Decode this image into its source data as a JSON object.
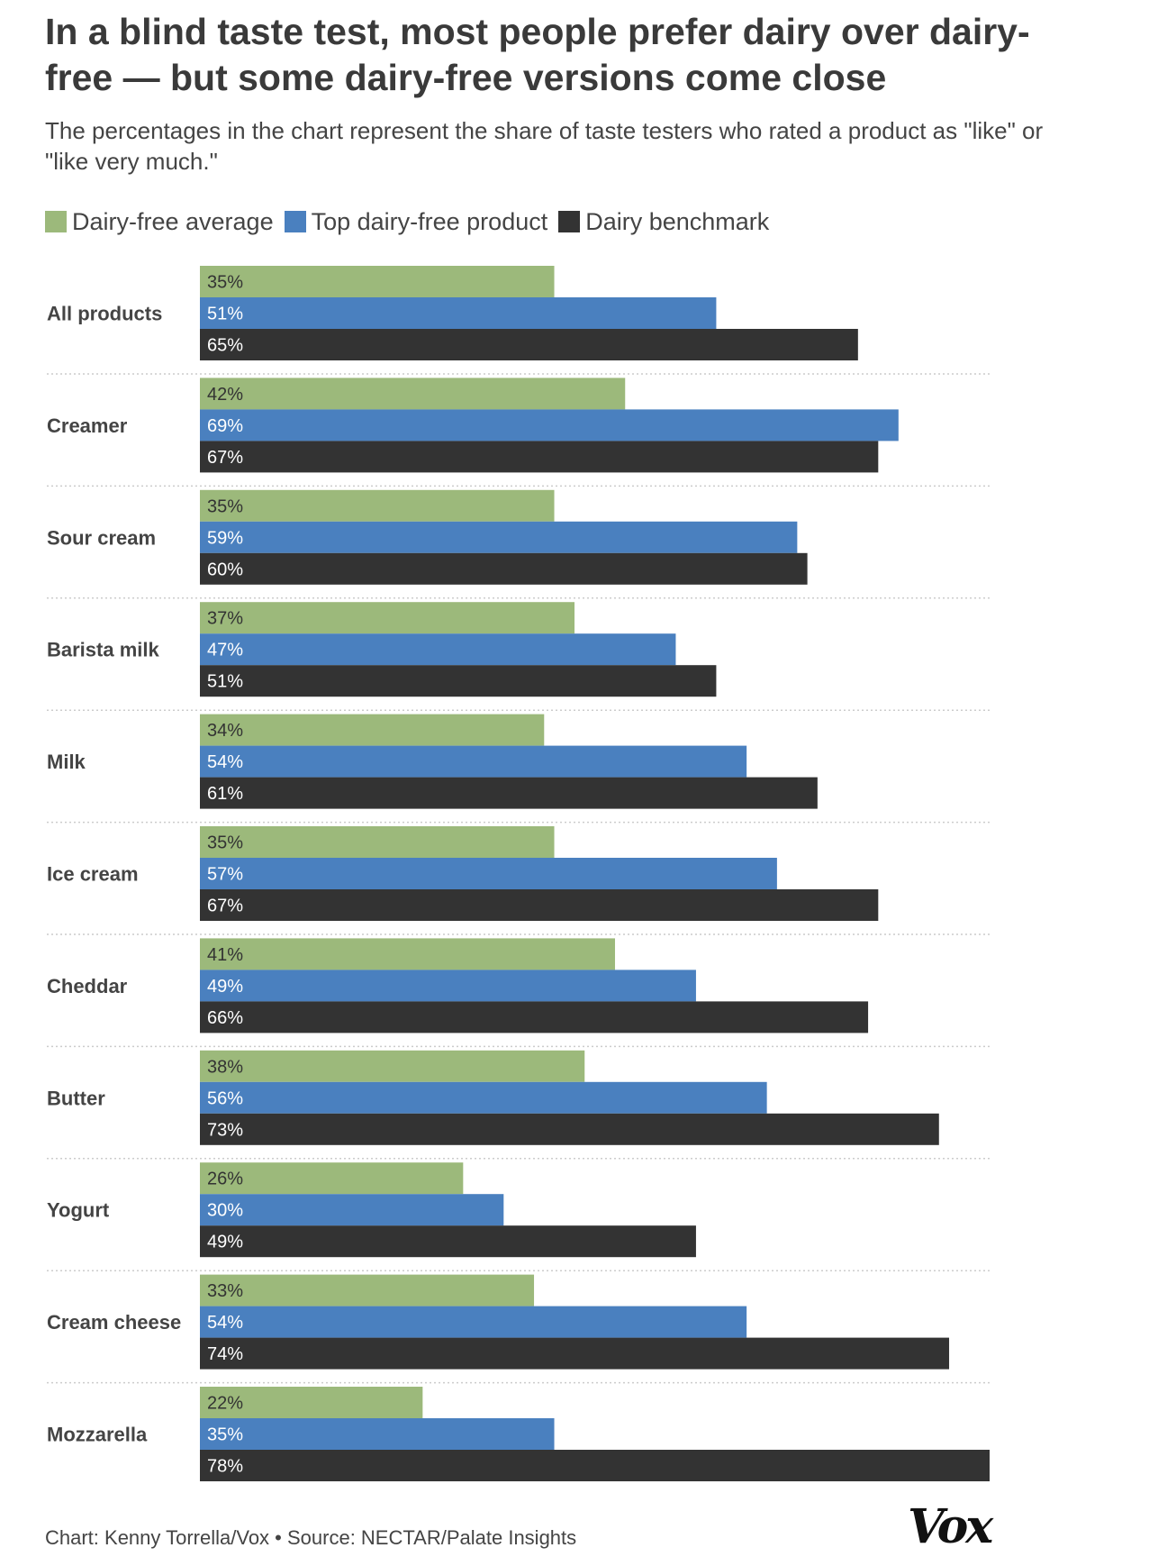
{
  "header": {
    "title": "In a blind taste test, most people prefer dairy over dairy-free — but some dairy-free versions come close",
    "subtitle": "The percentages in the chart represent the share of taste testers who rated a product as \"like\" or \"like very much.\""
  },
  "footer": {
    "credit": "Chart: Kenny Torrella/Vox • Source: NECTAR/Palate Insights",
    "logo": "Vox"
  },
  "colors": {
    "dairy_free_average": "#9cb97b",
    "top_dairy_free": "#4a80bf",
    "dairy_benchmark": "#333333",
    "separator": "#cccccc"
  },
  "chart_data": {
    "type": "bar",
    "orientation": "horizontal",
    "title": "In a blind taste test, most people prefer dairy over dairy-free — but some dairy-free versions come close",
    "xlim": [
      0,
      78
    ],
    "grid": false,
    "legend_position": "top-left",
    "value_suffix": "%",
    "categories": [
      "All products",
      "Creamer",
      "Sour cream",
      "Barista milk",
      "Milk",
      "Ice cream",
      "Cheddar",
      "Butter",
      "Yogurt",
      "Cream cheese",
      "Mozzarella"
    ],
    "series": [
      {
        "name": "Dairy-free average",
        "values": [
          35,
          42,
          35,
          37,
          34,
          35,
          41,
          38,
          26,
          33,
          22
        ]
      },
      {
        "name": "Top dairy-free product",
        "values": [
          51,
          69,
          59,
          47,
          54,
          57,
          49,
          56,
          30,
          54,
          35
        ]
      },
      {
        "name": "Dairy benchmark",
        "values": [
          65,
          67,
          60,
          51,
          61,
          67,
          66,
          73,
          49,
          74,
          78
        ]
      }
    ]
  }
}
